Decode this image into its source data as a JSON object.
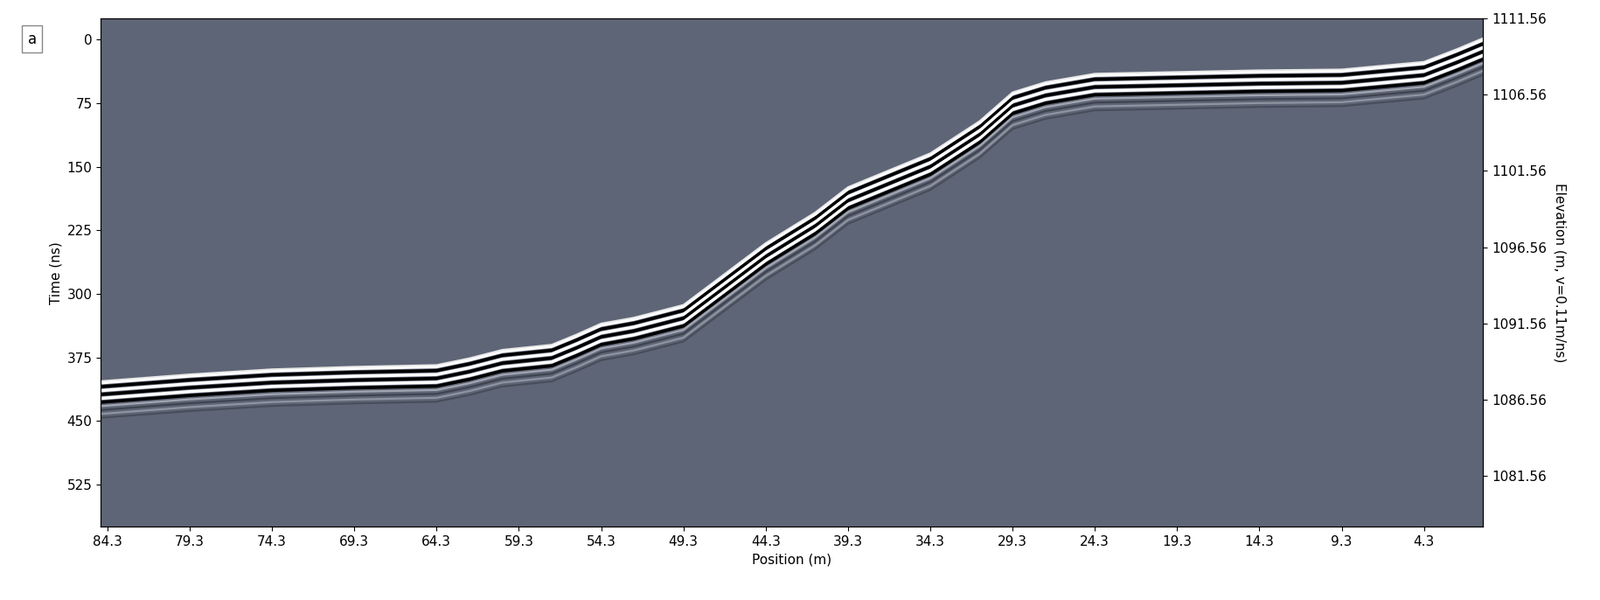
{
  "chart_data": {
    "type": "line",
    "panel_label": "a",
    "x_label": "Position (m)",
    "y_label": "Time (ns)",
    "y2_label": "Elevation (m, v=0.11m/ns)",
    "x": [
      84.7,
      79.3,
      74.3,
      69.3,
      64.3,
      62.3,
      60.3,
      57.3,
      55.8,
      54.3,
      52.3,
      49.3,
      44.3,
      41.3,
      39.3,
      36.3,
      34.3,
      31.3,
      29.3,
      27.3,
      24.3,
      19.3,
      14.3,
      9.3,
      4.3,
      2.3,
      0.7
    ],
    "values": [
      405,
      397,
      391,
      388,
      386,
      378,
      368,
      362,
      350,
      337,
      330,
      315,
      242,
      206,
      176,
      152,
      136,
      98,
      64,
      52,
      42,
      40,
      38,
      37,
      28,
      13,
      0
    ],
    "color": "#000000",
    "xlim": [
      84.7,
      0.7
    ],
    "xticks": [
      84.3,
      79.3,
      74.3,
      69.3,
      64.3,
      59.3,
      54.3,
      49.3,
      44.3,
      39.3,
      34.3,
      29.3,
      24.3,
      19.3,
      14.3,
      9.3,
      4.3
    ],
    "ylim": [
      575,
      -25
    ],
    "yticks": [
      0,
      75,
      150,
      225,
      300,
      375,
      450,
      525
    ],
    "y2lim": [
      1078.2,
      1111.56
    ],
    "y2ticks": [
      1111.56,
      1106.56,
      1101.56,
      1096.56,
      1091.56,
      1086.56,
      1081.56
    ],
    "grid": false
  }
}
